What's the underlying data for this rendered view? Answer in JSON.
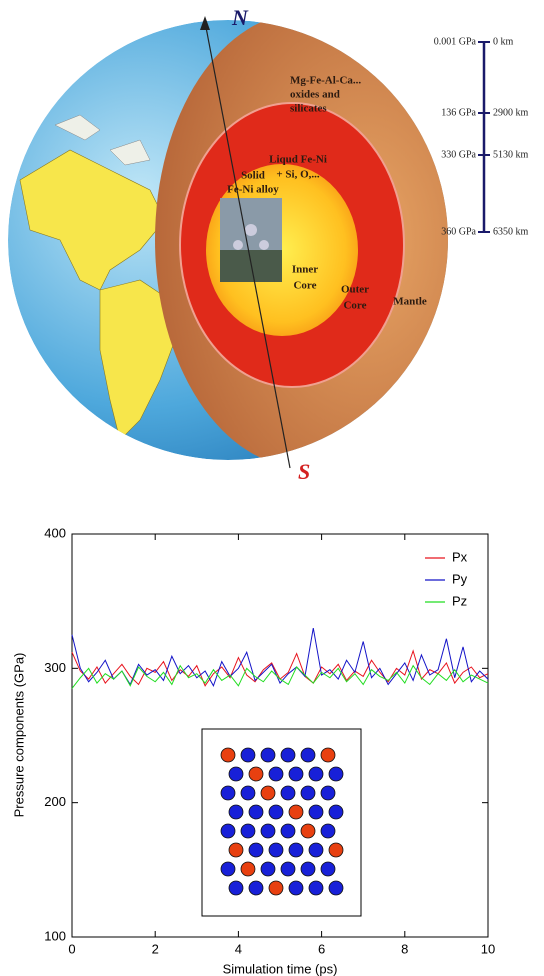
{
  "diagram": {
    "north": "N",
    "south": "S",
    "mantle_composition": [
      "Mg-Fe-Al-Ca...",
      "oxides and",
      "silicates"
    ],
    "outer_composition": [
      "Liqud Fe-Ni",
      "+ Si, O,..."
    ],
    "inner_composition": [
      "Solid",
      "Fe-Ni alloy"
    ],
    "inner_core": [
      "Inner",
      "Core"
    ],
    "outer_core": [
      "Outer",
      "Core"
    ],
    "mantle": "Mantle",
    "scale": [
      {
        "pressure": "0.001 GPa",
        "depth": "0 km"
      },
      {
        "pressure": "136 GPa",
        "depth": "2900 km"
      },
      {
        "pressure": "330 GPa",
        "depth": "5130 km"
      },
      {
        "pressure": "360 GPa",
        "depth": "6350 km"
      }
    ]
  },
  "chart_data": {
    "type": "line",
    "xlabel": "Simulation time (ps)",
    "ylabel": "Pressure components (GPa)",
    "xlim": [
      0,
      10
    ],
    "ylim": [
      100,
      400
    ],
    "xticks": [
      0,
      2,
      4,
      6,
      8,
      10
    ],
    "yticks": [
      100,
      200,
      300,
      400
    ],
    "legend": "upper right",
    "x": [
      0,
      0.2,
      0.4,
      0.6,
      0.8,
      1,
      1.2,
      1.4,
      1.6,
      1.8,
      2,
      2.2,
      2.4,
      2.6,
      2.8,
      3,
      3.2,
      3.4,
      3.6,
      3.8,
      4,
      4.2,
      4.4,
      4.6,
      4.8,
      5,
      5.2,
      5.4,
      5.6,
      5.8,
      6,
      6.2,
      6.4,
      6.6,
      6.8,
      7,
      7.2,
      7.4,
      7.6,
      7.8,
      8,
      8.2,
      8.4,
      8.6,
      8.8,
      9,
      9.2,
      9.4,
      9.6,
      9.8,
      10
    ],
    "series": [
      {
        "name": "Px",
        "color": "#e8141e",
        "values": [
          312,
          298,
          292,
          301,
          289,
          296,
          303,
          294,
          288,
          300,
          297,
          305,
          291,
          299,
          294,
          302,
          287,
          296,
          301,
          293,
          308,
          295,
          290,
          299,
          304,
          292,
          297,
          311,
          294,
          289,
          301,
          296,
          303,
          291,
          298,
          294,
          306,
          297,
          290,
          300,
          295,
          313,
          292,
          299,
          296,
          304,
          289,
          297,
          301,
          293,
          296
        ]
      },
      {
        "name": "Py",
        "color": "#1414c8",
        "values": [
          325,
          300,
          290,
          297,
          306,
          292,
          298,
          288,
          303,
          295,
          299,
          291,
          309,
          296,
          302,
          293,
          298,
          287,
          305,
          294,
          300,
          312,
          291,
          297,
          303,
          289,
          296,
          301,
          294,
          330,
          295,
          299,
          292,
          306,
          297,
          320,
          293,
          300,
          288,
          296,
          304,
          291,
          310,
          295,
          299,
          322,
          293,
          316,
          290,
          298,
          292
        ]
      },
      {
        "name": "Pz",
        "color": "#22dd22",
        "values": [
          285,
          293,
          300,
          289,
          296,
          292,
          298,
          287,
          301,
          294,
          290,
          297,
          288,
          302,
          293,
          296,
          289,
          299,
          291,
          295,
          287,
          300,
          294,
          290,
          298,
          292,
          288,
          301,
          295,
          289,
          297,
          293,
          300,
          290,
          296,
          288,
          299,
          294,
          291,
          297,
          289,
          302,
          293,
          288,
          296,
          291,
          299,
          290,
          295,
          292,
          289
        ]
      }
    ]
  }
}
